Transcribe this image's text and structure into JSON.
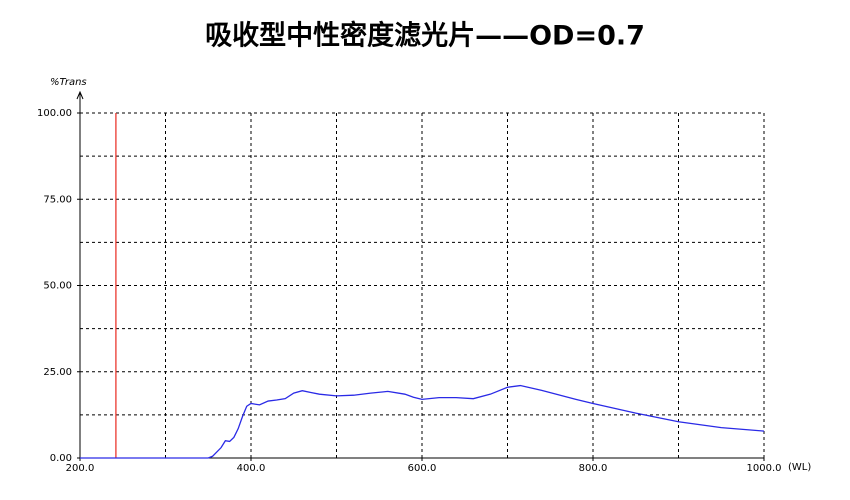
{
  "chart_data": {
    "type": "line",
    "title": "吸收型中性密度滤光片——OD=0.7",
    "y_label": "%Trans",
    "x_label": "(WL)",
    "x": [
      200,
      350,
      355,
      365,
      370,
      375,
      380,
      385,
      390,
      395,
      400,
      410,
      420,
      430,
      440,
      450,
      460,
      470,
      480,
      500,
      520,
      540,
      560,
      580,
      590,
      600,
      620,
      640,
      660,
      680,
      700,
      715,
      740,
      780,
      800,
      850,
      900,
      950,
      1000
    ],
    "values": [
      0,
      0,
      0.5,
      3,
      5,
      4.8,
      6,
      8.5,
      12,
      15,
      15.8,
      15.4,
      16.5,
      16.8,
      17.2,
      18.8,
      19.5,
      19,
      18.5,
      18,
      18.2,
      18.8,
      19.3,
      18.5,
      17.6,
      17,
      17.5,
      17.5,
      17.2,
      18.5,
      20.5,
      21,
      19.6,
      17,
      15.8,
      13,
      10.5,
      8.8,
      7.8
    ],
    "color": "#2a2ae6",
    "marker_x": 242,
    "marker_color": "#e8281e",
    "xlim": [
      200,
      1000
    ],
    "ylim": [
      0,
      100
    ],
    "xticks": [
      {
        "value": 200,
        "label": "200.0"
      },
      {
        "value": 400,
        "label": "400.0"
      },
      {
        "value": 600,
        "label": "600.0"
      },
      {
        "value": 800,
        "label": "800.0"
      },
      {
        "value": 1000,
        "label": "1000.0"
      }
    ],
    "yticks": [
      {
        "value": 0,
        "label": "0.00"
      },
      {
        "value": 25,
        "label": "25.00"
      },
      {
        "value": 50,
        "label": "50.00"
      },
      {
        "value": 75,
        "label": "75.00"
      },
      {
        "value": 100,
        "label": "100.00"
      }
    ],
    "grid": true,
    "minor_grid": true
  }
}
